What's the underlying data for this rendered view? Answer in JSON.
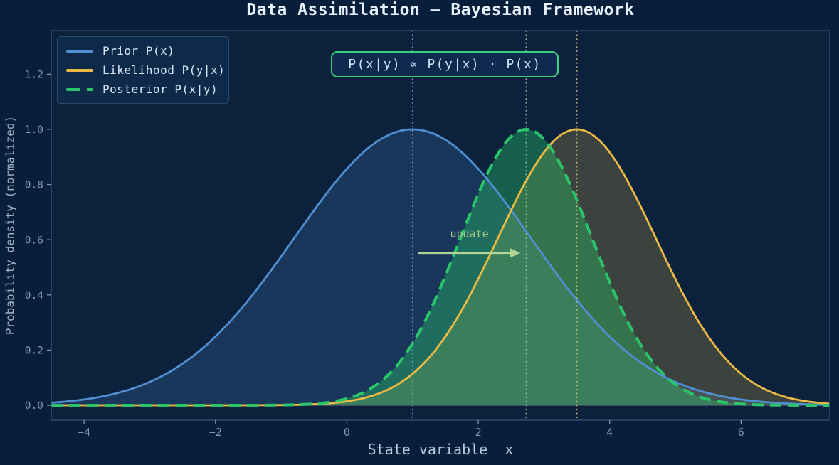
{
  "chart_data": {
    "type": "line",
    "title": "Data Assimilation — Bayesian Framework",
    "xlabel": "State variable  x",
    "ylabel": "Probability density (normalized)",
    "xlim": [
      -4.5,
      7.35
    ],
    "ylim": [
      -0.054,
      1.358
    ],
    "grid": false,
    "xticks": {
      "values": [
        -4,
        -2,
        0,
        2,
        4,
        6
      ],
      "labels": [
        "−4",
        "−2",
        "0",
        "2",
        "4",
        "6"
      ]
    },
    "yticks": {
      "values": [
        0.0,
        0.2,
        0.4,
        0.6,
        0.8,
        1.0,
        1.2
      ],
      "labels": [
        "0.0",
        "0.2",
        "0.4",
        "0.6",
        "0.8",
        "1.0",
        "1.2"
      ]
    },
    "series": [
      {
        "name": "Prior P(x)",
        "curve": "gaussian",
        "mean": 1.0,
        "sigma": 1.8,
        "peak": 1.0,
        "color": "#4f8fd2",
        "fill_opacity": 0.2,
        "line_style": "solid",
        "line_width": 2.8
      },
      {
        "name": "Likelihood P(y|x)",
        "curve": "gaussian",
        "mean": 3.5,
        "sigma": 1.2,
        "peak": 1.0,
        "color": "#eaba44",
        "fill_opacity": 0.22,
        "line_style": "solid",
        "line_width": 2.8
      },
      {
        "name": "Posterior P(x|y)",
        "curve": "gaussian",
        "mean": 2.73,
        "sigma": 1.0,
        "peak": 1.0,
        "color": "#2bc46a",
        "fill_opacity": 0.38,
        "line_style": "dashed",
        "line_width": 4.0
      }
    ],
    "vlines": [
      {
        "x": 1.0,
        "color": "#7d9cc0"
      },
      {
        "x": 2.73,
        "color": "#8fd0a0"
      },
      {
        "x": 3.5,
        "color": "#d3c386"
      }
    ],
    "zero_line": {
      "y": 0,
      "color": "#9aa8b8",
      "opacity": 0.45
    },
    "annotation": {
      "text": "P(x|y) ∝ P(y|x) · P(x)",
      "border_color": "#3ecf7c",
      "text_color": "#cfe6f8"
    },
    "arrow": {
      "label": "update",
      "x1": 1.09,
      "x2": 2.64,
      "y": 0.552,
      "color": "#b5d693",
      "label_color": "#a5c98c"
    },
    "legend": {
      "position": "upper left"
    }
  },
  "colors": {
    "figure_bg": "#081f3b",
    "axes_bg": "#0c213c",
    "spine": "#3a5578",
    "tick_color": "#7f96ac",
    "title_color": "#e9f1fa",
    "xlabel_color": "#b7cadc",
    "ylabel_color": "#9db2c6",
    "legend_bg": "#0e2a4b",
    "legend_border": "#2d4a6e",
    "legend_text": "#d9e7f4",
    "annotation_bg": "#0e2a4e"
  }
}
